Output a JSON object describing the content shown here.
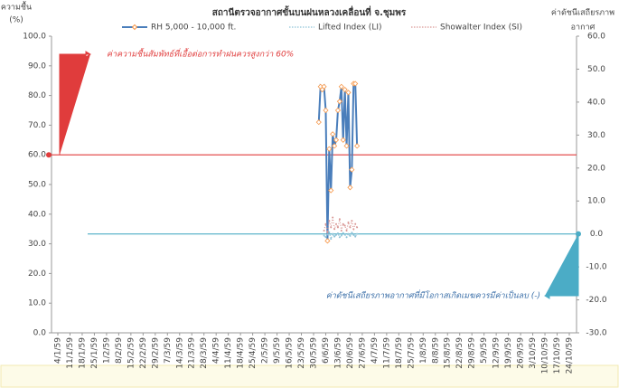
{
  "chart_data": {
    "type": "line",
    "title": "สถานีตรวจอากาศขั้นบนฝนหลวงเคลื่อนที่ จ.ชุมพร",
    "y_label": [
      "ความชื้น",
      "(%)"
    ],
    "y2_label": [
      "ค่าดัชนีเสถียรภาพ",
      "อากาศ"
    ],
    "categories": [
      "4/1/59",
      "11/1/59",
      "18/1/59",
      "25/1/59",
      "1/2/59",
      "8/2/59",
      "15/2/59",
      "22/2/59",
      "29/2/59",
      "7/3/59",
      "14/3/59",
      "21/3/59",
      "28/3/59",
      "4/4/59",
      "11/4/59",
      "18/4/59",
      "25/4/59",
      "2/5/59",
      "9/5/59",
      "16/5/59",
      "23/5/59",
      "30/5/59",
      "6/6/59",
      "13/6/59",
      "20/6/59",
      "27/6/59",
      "4/7/59",
      "11/7/59",
      "18/7/59",
      "25/7/59",
      "1/8/59",
      "8/8/59",
      "15/8/59",
      "22/8/59",
      "29/8/59",
      "5/9/59",
      "12/9/59",
      "19/9/59",
      "26/9/59",
      "3/10/59",
      "10/10/59",
      "17/10/59",
      "24/10/59"
    ],
    "xlim": [
      "4/1/59",
      "24/10/59"
    ],
    "ylim": [
      0,
      100
    ],
    "yticks": [
      {
        "value": 0,
        "label": "0.0"
      },
      {
        "value": 10,
        "label": "10.0"
      },
      {
        "value": 20,
        "label": "20.0"
      },
      {
        "value": 30,
        "label": "30.0"
      },
      {
        "value": 40,
        "label": "40.0"
      },
      {
        "value": 50,
        "label": "50.0"
      },
      {
        "value": 60,
        "label": "60.0"
      },
      {
        "value": 70,
        "label": "70.0"
      },
      {
        "value": 80,
        "label": "80.0"
      },
      {
        "value": 90,
        "label": "90.0"
      },
      {
        "value": 100,
        "label": "100.0"
      }
    ],
    "y2lim": [
      -30,
      60
    ],
    "y2ticks": [
      {
        "value": -30,
        "label": "-30.0"
      },
      {
        "value": -20,
        "label": "-20.0"
      },
      {
        "value": -10,
        "label": "-10.0"
      },
      {
        "value": 0,
        "label": "0.0"
      },
      {
        "value": 10,
        "label": "10.0"
      },
      {
        "value": 20,
        "label": "20.0"
      },
      {
        "value": 30,
        "label": "30.0"
      },
      {
        "value": 40,
        "label": "40.0"
      },
      {
        "value": 50,
        "label": "50.0"
      },
      {
        "value": 60,
        "label": "60.0"
      }
    ],
    "series": [
      {
        "name": "RH 5,000 - 10,000 ft.",
        "color": "#4a7ebb",
        "marker_color": "#f79646",
        "x": [
          "2/6/59",
          "3/6/59",
          "4/6/59",
          "5/6/59",
          "6/6/59",
          "7/6/59",
          "8/6/59",
          "9/6/59",
          "10/6/59",
          "11/6/59",
          "12/6/59",
          "13/6/59",
          "14/6/59",
          "15/6/59",
          "16/6/59",
          "17/6/59",
          "18/6/59",
          "19/6/59",
          "20/6/59",
          "21/6/59",
          "22/6/59",
          "23/6/59",
          "24/6/59"
        ],
        "values": [
          71,
          83,
          82,
          83,
          75,
          31,
          62,
          48,
          67,
          63,
          65,
          75,
          78,
          83,
          65,
          82,
          63,
          81,
          49,
          55,
          84,
          84,
          63
        ]
      },
      {
        "name": "Lifted Index (LI)",
        "color": "#8ec3d8",
        "axis": "y2",
        "x": [
          "5/6/59",
          "6/6/59",
          "7/6/59",
          "8/6/59",
          "9/6/59",
          "10/6/59",
          "11/6/59",
          "12/6/59",
          "13/6/59",
          "14/6/59",
          "15/6/59",
          "16/6/59",
          "17/6/59",
          "18/6/59",
          "19/6/59",
          "20/6/59",
          "21/6/59",
          "22/6/59",
          "23/6/59",
          "24/6/59"
        ],
        "values": [
          -0.5,
          -1,
          -0.2,
          0.5,
          -1.5,
          0,
          -0.8,
          -0.3,
          0.2,
          -1,
          -0.5,
          0.3,
          -0.2,
          -1,
          0,
          -0.6,
          0.4,
          -0.3,
          -0.8,
          0
        ]
      },
      {
        "name": "Showalter Index (SI)",
        "color": "#d99694",
        "axis": "y2",
        "x": [
          "5/6/59",
          "6/6/59",
          "7/6/59",
          "8/6/59",
          "9/6/59",
          "10/6/59",
          "11/6/59",
          "12/6/59",
          "13/6/59",
          "14/6/59",
          "15/6/59",
          "16/6/59",
          "17/6/59",
          "18/6/59",
          "19/6/59",
          "20/6/59",
          "21/6/59",
          "22/6/59",
          "23/6/59",
          "24/6/59"
        ],
        "values": [
          1,
          3,
          0.5,
          4,
          2,
          5,
          1.5,
          3,
          2,
          4.5,
          1,
          3,
          2.5,
          1,
          3.5,
          2,
          4,
          1.5,
          3,
          2
        ]
      }
    ],
    "reference_lines": [
      {
        "value": 60,
        "axis": "y",
        "color": "#e03c3c",
        "text": "ค่าความชื้นสัมพัทธ์ที่เอื้อต่อการทำฝนควรสูงกว่า 60%"
      },
      {
        "value": 0,
        "axis": "y2",
        "color": "#4bacc6",
        "text": "ค่าดัชนีเสถียรภาพอากาศที่มีโอกาสเกิดเมฆควรมีค่าเป็นลบ (-)"
      }
    ],
    "grid": false
  }
}
